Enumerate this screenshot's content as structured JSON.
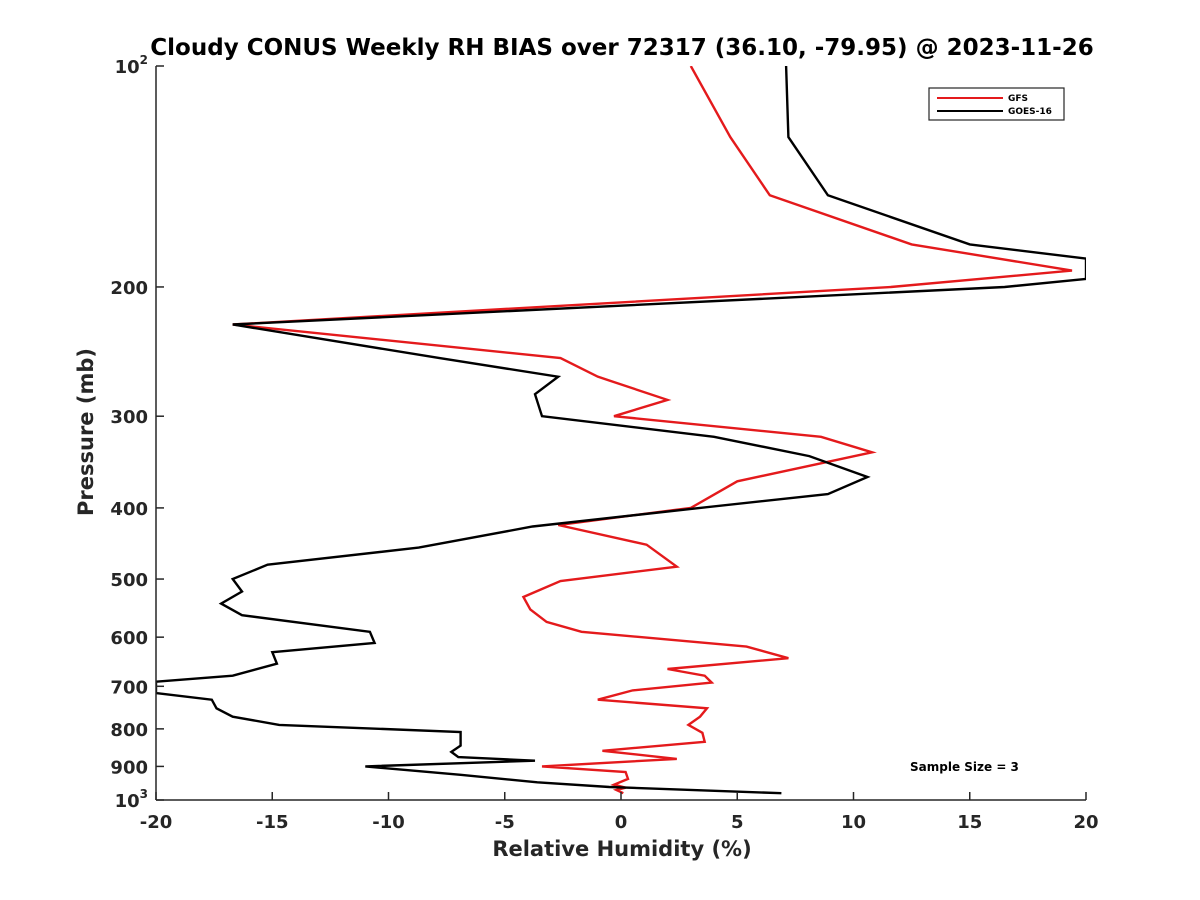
{
  "chart_data": {
    "type": "line",
    "title": "Cloudy CONUS Weekly RH BIAS over 72317 (36.10, -79.95) @ 2023-11-26",
    "xlabel": "Relative Humidity (%)",
    "ylabel": "Pressure (mb)",
    "xlim": [
      -20,
      20
    ],
    "ylim": [
      100,
      1000
    ],
    "y_scale": "log",
    "y_reversed": true,
    "xticks": [
      -20,
      -15,
      -10,
      -5,
      0,
      5,
      10,
      15,
      20
    ],
    "yticks": [
      {
        "value": 100,
        "label": "10",
        "sup": "2"
      },
      {
        "value": 200,
        "label": "200"
      },
      {
        "value": 300,
        "label": "300"
      },
      {
        "value": 400,
        "label": "400"
      },
      {
        "value": 500,
        "label": "500"
      },
      {
        "value": 600,
        "label": "600"
      },
      {
        "value": 700,
        "label": "700"
      },
      {
        "value": 800,
        "label": "800"
      },
      {
        "value": 900,
        "label": "900"
      },
      {
        "value": 1000,
        "label": "10",
        "sup": "3"
      }
    ],
    "grid": false,
    "legend_position": "top-right",
    "annotation": "Sample Size = 3",
    "series": [
      {
        "name": "GFS",
        "color": "#e41a1c",
        "points": [
          [
            3.0,
            100
          ],
          [
            4.7,
            125
          ],
          [
            6.4,
            150
          ],
          [
            12.5,
            175
          ],
          [
            19.4,
            190
          ],
          [
            11.6,
            200
          ],
          [
            -16.7,
            225
          ],
          [
            -2.6,
            250
          ],
          [
            -1.0,
            265
          ],
          [
            2.0,
            285
          ],
          [
            -0.3,
            300
          ],
          [
            8.6,
            320
          ],
          [
            10.8,
            336
          ],
          [
            5.0,
            368
          ],
          [
            3.0,
            400
          ],
          [
            -2.7,
            422
          ],
          [
            1.1,
            449
          ],
          [
            2.4,
            481
          ],
          [
            -2.6,
            503
          ],
          [
            -4.2,
            529
          ],
          [
            -3.9,
            550
          ],
          [
            -3.2,
            572
          ],
          [
            -1.7,
            590
          ],
          [
            5.4,
            618
          ],
          [
            7.2,
            641
          ],
          [
            2.0,
            663
          ],
          [
            3.6,
            677
          ],
          [
            3.9,
            692
          ],
          [
            0.5,
            709
          ],
          [
            -1.0,
            730
          ],
          [
            3.7,
            750
          ],
          [
            3.4,
            770
          ],
          [
            2.9,
            790
          ],
          [
            3.5,
            810
          ],
          [
            3.6,
            833
          ],
          [
            -0.8,
            857
          ],
          [
            2.4,
            879
          ],
          [
            -3.4,
            900
          ],
          [
            0.2,
            916
          ],
          [
            0.3,
            936
          ],
          [
            -0.3,
            953
          ],
          [
            0.2,
            962
          ],
          [
            -0.2,
            969
          ],
          [
            0.1,
            979
          ]
        ]
      },
      {
        "name": "GOES-16",
        "color": "#000000",
        "points": [
          [
            7.1,
            100
          ],
          [
            7.2,
            125
          ],
          [
            8.9,
            150
          ],
          [
            15.0,
            175
          ],
          [
            20.0,
            183
          ],
          [
            20.0,
            195
          ],
          [
            16.5,
            200
          ],
          [
            -16.7,
            225
          ],
          [
            -7.8,
            250
          ],
          [
            -2.7,
            265
          ],
          [
            -3.7,
            280
          ],
          [
            -3.4,
            300
          ],
          [
            4.0,
            320
          ],
          [
            8.1,
            340
          ],
          [
            10.6,
            363
          ],
          [
            8.9,
            383
          ],
          [
            3.4,
            400
          ],
          [
            -3.8,
            424
          ],
          [
            -8.7,
            453
          ],
          [
            -15.2,
            478
          ],
          [
            -16.7,
            500
          ],
          [
            -16.3,
            520
          ],
          [
            -17.2,
            540
          ],
          [
            -16.3,
            560
          ],
          [
            -10.8,
            590
          ],
          [
            -10.6,
            611
          ],
          [
            -15.0,
            629
          ],
          [
            -14.8,
            652
          ],
          [
            -16.7,
            677
          ],
          [
            -20.0,
            690
          ],
          [
            -20.0,
            715
          ],
          [
            -17.6,
            730
          ],
          [
            -17.4,
            750
          ],
          [
            -16.7,
            770
          ],
          [
            -14.7,
            790
          ],
          [
            -6.9,
            808
          ],
          [
            -6.9,
            843
          ],
          [
            -7.3,
            860
          ],
          [
            -7.0,
            874
          ],
          [
            -3.7,
            884
          ],
          [
            -11.0,
            900
          ],
          [
            -6.9,
            924
          ],
          [
            -3.6,
            946
          ],
          [
            -0.5,
            960
          ],
          [
            6.9,
            979
          ]
        ]
      }
    ]
  }
}
